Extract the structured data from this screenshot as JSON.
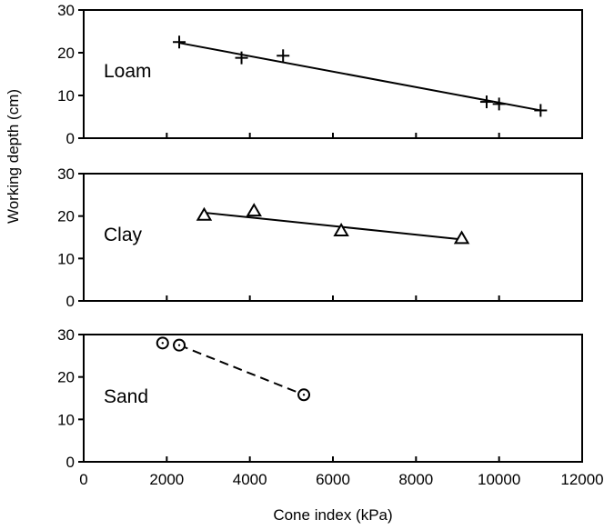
{
  "chart_data": {
    "type": "scatter",
    "xlabel": "Cone index (kPa)",
    "ylabel": "Working depth (cm)",
    "xlim": [
      0,
      12000
    ],
    "xticks": [
      "0",
      "2000",
      "4000",
      "6000",
      "8000",
      "10000",
      "12000"
    ],
    "ylim": [
      0,
      30
    ],
    "yticks": [
      "0",
      "10",
      "20",
      "30"
    ],
    "grid": false,
    "panels": [
      {
        "label": "Loam",
        "marker": "plus",
        "points": [
          [
            2300,
            22.5
          ],
          [
            3800,
            18.8
          ],
          [
            4800,
            19.3
          ],
          [
            9700,
            8.5
          ],
          [
            10000,
            8.0
          ],
          [
            11000,
            6.5
          ]
        ],
        "fit": {
          "style": "solid",
          "x": [
            2300,
            11000
          ],
          "y": [
            22.3,
            6.5
          ]
        }
      },
      {
        "label": "Clay",
        "marker": "triangle",
        "points": [
          [
            2900,
            20.2
          ],
          [
            4100,
            21.2
          ],
          [
            6200,
            16.5
          ],
          [
            9100,
            14.7
          ]
        ],
        "fit": {
          "style": "solid",
          "x": [
            2900,
            9100
          ],
          "y": [
            20.8,
            14.5
          ]
        }
      },
      {
        "label": "Sand",
        "marker": "circle",
        "points": [
          [
            1900,
            28.0
          ],
          [
            2300,
            27.5
          ],
          [
            5300,
            15.8
          ]
        ],
        "fit": {
          "style": "dashed",
          "x": [
            2300,
            5300
          ],
          "y": [
            27.5,
            15.8
          ]
        }
      }
    ]
  }
}
